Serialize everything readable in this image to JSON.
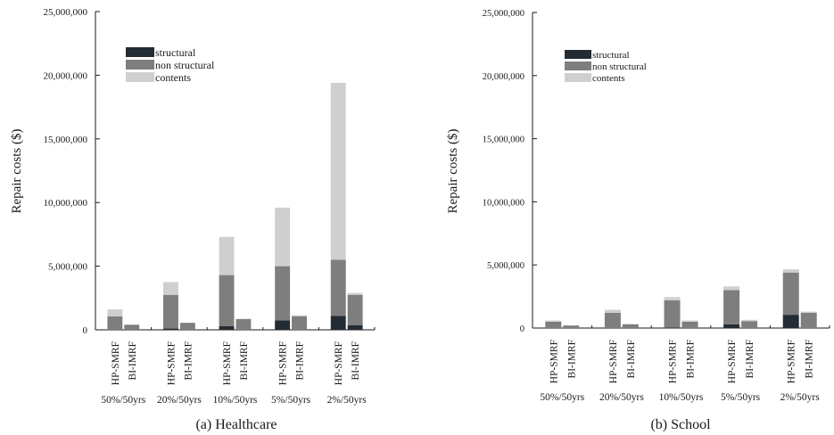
{
  "colors": {
    "structural": "#232b33",
    "non_structural": "#7e7e7e",
    "contents": "#cfcfcf",
    "axis": "#1a1a1a"
  },
  "chart_data": [
    {
      "type": "bar",
      "stacked": true,
      "caption": "(a) Healthcare",
      "ylabel": "Repair costs ($)",
      "ylim": [
        0,
        25000000
      ],
      "yticks": [
        0,
        5000000,
        10000000,
        15000000,
        20000000,
        25000000
      ],
      "ytick_labels": [
        "0",
        "5,000,000",
        "10,000,000",
        "15,000,000",
        "20,000,000",
        "25,000,000"
      ],
      "groups": [
        "50%/50yrs",
        "20%/50yrs",
        "10%/50yrs",
        "5%/50yrs",
        "2%/50yrs"
      ],
      "systems": [
        "HP-SMRF",
        "BI-IMRF"
      ],
      "legend": [
        "structural",
        "non structural",
        "contents"
      ],
      "legend_position": "top-left",
      "bars": [
        {
          "group": "50%/50yrs",
          "system": "HP-SMRF",
          "structural": 0,
          "non_structural": 1050000,
          "contents": 550000
        },
        {
          "group": "50%/50yrs",
          "system": "BI-IMRF",
          "structural": 0,
          "non_structural": 400000,
          "contents": 0
        },
        {
          "group": "20%/50yrs",
          "system": "HP-SMRF",
          "structural": 100000,
          "non_structural": 2650000,
          "contents": 1000000
        },
        {
          "group": "20%/50yrs",
          "system": "BI-IMRF",
          "structural": 0,
          "non_structural": 550000,
          "contents": 0
        },
        {
          "group": "10%/50yrs",
          "system": "HP-SMRF",
          "structural": 300000,
          "non_structural": 4000000,
          "contents": 3000000
        },
        {
          "group": "10%/50yrs",
          "system": "BI-IMRF",
          "structural": 0,
          "non_structural": 850000,
          "contents": 0
        },
        {
          "group": "5%/50yrs",
          "system": "HP-SMRF",
          "structural": 750000,
          "non_structural": 4250000,
          "contents": 4600000
        },
        {
          "group": "5%/50yrs",
          "system": "BI-IMRF",
          "structural": 0,
          "non_structural": 1050000,
          "contents": 100000
        },
        {
          "group": "2%/50yrs",
          "system": "HP-SMRF",
          "structural": 1100000,
          "non_structural": 4400000,
          "contents": 13900000
        },
        {
          "group": "2%/50yrs",
          "system": "BI-IMRF",
          "structural": 350000,
          "non_structural": 2400000,
          "contents": 150000
        }
      ]
    },
    {
      "type": "bar",
      "stacked": true,
      "caption": "(b) School",
      "ylabel": "Repair costs ($)",
      "ylim": [
        0,
        25000000
      ],
      "yticks": [
        0,
        5000000,
        10000000,
        15000000,
        20000000,
        25000000
      ],
      "ytick_labels": [
        "0",
        "5,000,000",
        "10,000,000",
        "15,000,000",
        "20,000,000",
        "25,000,000"
      ],
      "groups": [
        "50%/50yrs",
        "20%/50yrs",
        "10%/50yrs",
        "5%/50yrs",
        "2%/50yrs"
      ],
      "systems": [
        "HP-SMRF",
        "BI-IMRF"
      ],
      "legend": [
        "structural",
        "non structural",
        "contents"
      ],
      "legend_position": "top-left",
      "bars": [
        {
          "group": "50%/50yrs",
          "system": "HP-SMRF",
          "structural": 0,
          "non_structural": 500000,
          "contents": 100000
        },
        {
          "group": "50%/50yrs",
          "system": "BI-IMRF",
          "structural": 0,
          "non_structural": 200000,
          "contents": 0
        },
        {
          "group": "20%/50yrs",
          "system": "HP-SMRF",
          "structural": 0,
          "non_structural": 1200000,
          "contents": 250000
        },
        {
          "group": "20%/50yrs",
          "system": "BI-IMRF",
          "structural": 0,
          "non_structural": 300000,
          "contents": 0
        },
        {
          "group": "10%/50yrs",
          "system": "HP-SMRF",
          "structural": 50000,
          "non_structural": 2150000,
          "contents": 250000
        },
        {
          "group": "10%/50yrs",
          "system": "BI-IMRF",
          "structural": 0,
          "non_structural": 500000,
          "contents": 100000
        },
        {
          "group": "5%/50yrs",
          "system": "HP-SMRF",
          "structural": 300000,
          "non_structural": 2700000,
          "contents": 300000
        },
        {
          "group": "5%/50yrs",
          "system": "BI-IMRF",
          "structural": 0,
          "non_structural": 550000,
          "contents": 100000
        },
        {
          "group": "2%/50yrs",
          "system": "HP-SMRF",
          "structural": 1050000,
          "non_structural": 3350000,
          "contents": 250000
        },
        {
          "group": "2%/50yrs",
          "system": "BI-IMRF",
          "structural": 0,
          "non_structural": 1200000,
          "contents": 100000
        }
      ]
    }
  ]
}
